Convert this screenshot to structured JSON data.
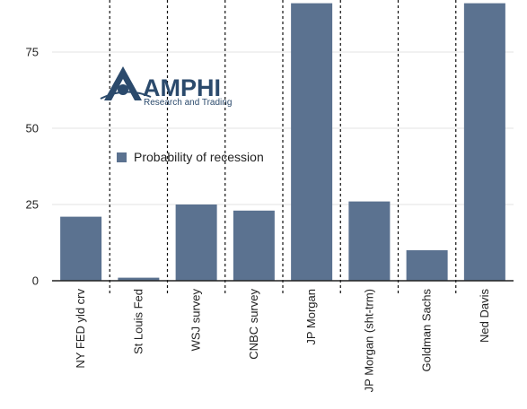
{
  "chart_data": {
    "type": "bar",
    "categories": [
      "NY FED yld crv",
      "St Louis Fed",
      "WSJ survey",
      "CNBC survey",
      "JP Morgan",
      "JP Morgan (sht-trm)",
      "Goldman Sachs",
      "Ned Davis"
    ],
    "series": [
      {
        "name": "Probability of recession",
        "values": [
          21,
          1,
          25,
          23,
          91,
          26,
          10,
          91
        ]
      }
    ],
    "yticks": [
      0,
      25,
      50,
      75
    ],
    "ylim": [
      0,
      92
    ],
    "grid": true,
    "legend_position": "inside-left",
    "bar_color": "#5b7290",
    "separator": "dashed"
  },
  "logo": {
    "name": "AMPHI",
    "tagline": "Research and Trading",
    "color": "#2b4a6c"
  }
}
